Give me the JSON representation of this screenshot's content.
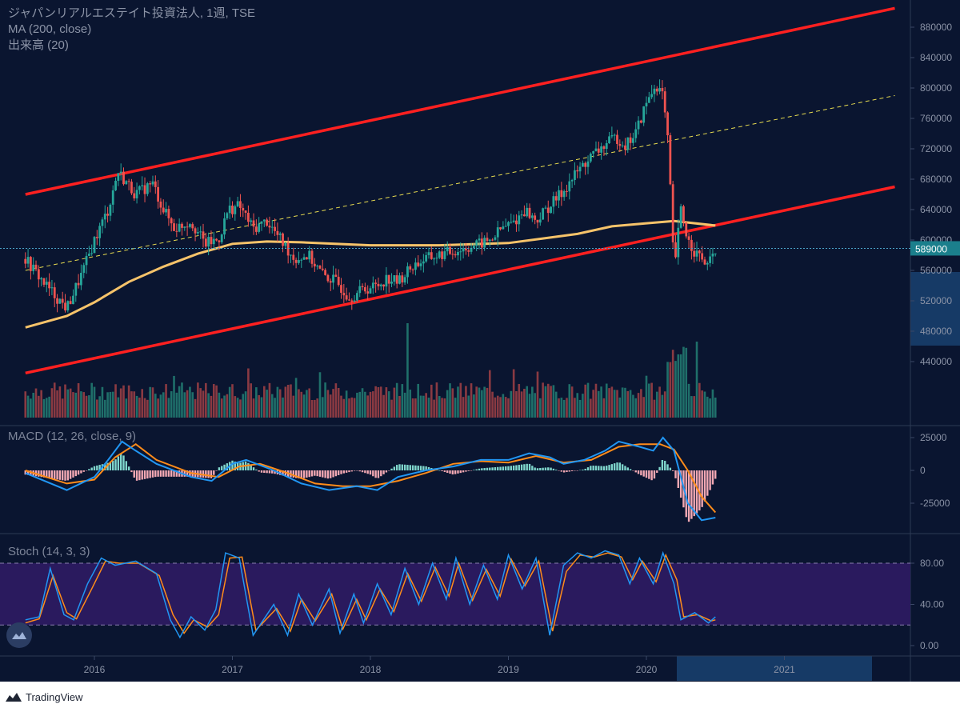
{
  "header": {
    "title": "ジャパンリアルエステイト投資法人, 1週, TSE",
    "ma_label": "MA (200, close)",
    "volume_label": "出来高 (20)"
  },
  "price_tag": "589000",
  "brand": {
    "name": "TradingView"
  },
  "colors": {
    "background": "#0a1530",
    "up": "#26a69a",
    "down": "#ef5350",
    "channel": "#ff2020",
    "ma": "#f6c36a",
    "midline": "#e8dc50",
    "macd": "#2196f3",
    "signal": "#ff8c1a",
    "stoch_band": "#2a1a5e"
  },
  "chart_data": [
    {
      "type": "candlestick",
      "title": "ジャパンリアルエステイト投資法人, 1週, TSE",
      "x_ticks": [
        "2016",
        "2017",
        "2018",
        "2019",
        "2020",
        "2021"
      ],
      "y_ticks": [
        "440000",
        "480000",
        "520000",
        "560000",
        "600000",
        "640000",
        "680000",
        "720000",
        "760000",
        "800000",
        "840000",
        "880000"
      ],
      "ylim": [
        415000,
        905000
      ],
      "last_price": 589000,
      "price_path": [
        [
          2015.5,
          575000
        ],
        [
          2015.65,
          540000
        ],
        [
          2015.8,
          510000
        ],
        [
          2015.92,
          560000
        ],
        [
          2016.0,
          600000
        ],
        [
          2016.1,
          640000
        ],
        [
          2016.17,
          690000
        ],
        [
          2016.3,
          660000
        ],
        [
          2016.42,
          675000
        ],
        [
          2016.5,
          640000
        ],
        [
          2016.58,
          615000
        ],
        [
          2016.7,
          625000
        ],
        [
          2016.8,
          595000
        ],
        [
          2016.9,
          600000
        ],
        [
          2016.97,
          640000
        ],
        [
          2017.05,
          645000
        ],
        [
          2017.15,
          615000
        ],
        [
          2017.25,
          625000
        ],
        [
          2017.35,
          600000
        ],
        [
          2017.45,
          575000
        ],
        [
          2017.55,
          580000
        ],
        [
          2017.65,
          555000
        ],
        [
          2017.75,
          545000
        ],
        [
          2017.85,
          525000
        ],
        [
          2017.95,
          535000
        ],
        [
          2018.05,
          540000
        ],
        [
          2018.12,
          550000
        ],
        [
          2018.2,
          545000
        ],
        [
          2018.3,
          565000
        ],
        [
          2018.4,
          575000
        ],
        [
          2018.5,
          580000
        ],
        [
          2018.6,
          585000
        ],
        [
          2018.7,
          590000
        ],
        [
          2018.8,
          595000
        ],
        [
          2018.87,
          600000
        ],
        [
          2018.95,
          615000
        ],
        [
          2019.05,
          625000
        ],
        [
          2019.12,
          640000
        ],
        [
          2019.2,
          625000
        ],
        [
          2019.3,
          645000
        ],
        [
          2019.4,
          665000
        ],
        [
          2019.5,
          690000
        ],
        [
          2019.6,
          710000
        ],
        [
          2019.7,
          725000
        ],
        [
          2019.78,
          735000
        ],
        [
          2019.85,
          725000
        ],
        [
          2019.92,
          740000
        ],
        [
          2020.0,
          780000
        ],
        [
          2020.07,
          805000
        ],
        [
          2020.12,
          790000
        ],
        [
          2020.16,
          720000
        ],
        [
          2020.2,
          560000
        ],
        [
          2020.25,
          640000
        ],
        [
          2020.3,
          600000
        ],
        [
          2020.35,
          585000
        ],
        [
          2020.4,
          575000
        ],
        [
          2020.45,
          565000
        ],
        [
          2020.5,
          589000
        ]
      ],
      "ma200_path": [
        [
          2015.5,
          485000
        ],
        [
          2015.8,
          500000
        ],
        [
          2016.0,
          518000
        ],
        [
          2016.25,
          545000
        ],
        [
          2016.5,
          565000
        ],
        [
          2016.75,
          582000
        ],
        [
          2017.0,
          595000
        ],
        [
          2017.25,
          598000
        ],
        [
          2017.5,
          597000
        ],
        [
          2018.0,
          593000
        ],
        [
          2018.5,
          593000
        ],
        [
          2019.0,
          596000
        ],
        [
          2019.25,
          602000
        ],
        [
          2019.5,
          608000
        ],
        [
          2019.75,
          618000
        ],
        [
          2020.0,
          622000
        ],
        [
          2020.2,
          625000
        ],
        [
          2020.5,
          619000
        ]
      ],
      "channel_upper": [
        [
          2015.5,
          660000
        ],
        [
          2021.8,
          905000
        ]
      ],
      "channel_lower": [
        [
          2015.5,
          425000
        ],
        [
          2021.8,
          670000
        ]
      ],
      "channel_mid": [
        [
          2015.5,
          560000
        ],
        [
          2021.8,
          790000
        ]
      ]
    },
    {
      "type": "line",
      "title": "MACD (12, 26, close, 9)",
      "y_ticks": [
        "25000",
        "0",
        "-25000"
      ],
      "ylim": [
        -45000,
        32000
      ],
      "macd_path": [
        [
          2015.5,
          -2000
        ],
        [
          2015.8,
          -15000
        ],
        [
          2016.0,
          -5000
        ],
        [
          2016.1,
          8000
        ],
        [
          2016.2,
          22000
        ],
        [
          2016.3,
          15000
        ],
        [
          2016.45,
          5000
        ],
        [
          2016.7,
          -5000
        ],
        [
          2016.85,
          -8000
        ],
        [
          2017.0,
          5000
        ],
        [
          2017.1,
          8000
        ],
        [
          2017.3,
          0
        ],
        [
          2017.5,
          -10000
        ],
        [
          2017.7,
          -15000
        ],
        [
          2017.9,
          -12000
        ],
        [
          2018.05,
          -15000
        ],
        [
          2018.2,
          -5000
        ],
        [
          2018.4,
          0
        ],
        [
          2018.6,
          3000
        ],
        [
          2018.8,
          8000
        ],
        [
          2019.0,
          8000
        ],
        [
          2019.15,
          13000
        ],
        [
          2019.3,
          10000
        ],
        [
          2019.4,
          5000
        ],
        [
          2019.55,
          8000
        ],
        [
          2019.7,
          15000
        ],
        [
          2019.8,
          22000
        ],
        [
          2019.95,
          18000
        ],
        [
          2020.05,
          15000
        ],
        [
          2020.12,
          25000
        ],
        [
          2020.2,
          15000
        ],
        [
          2020.25,
          -5000
        ],
        [
          2020.3,
          -25000
        ],
        [
          2020.4,
          -38000
        ],
        [
          2020.5,
          -36000
        ]
      ],
      "signal_path": [
        [
          2015.5,
          0
        ],
        [
          2015.8,
          -10000
        ],
        [
          2016.0,
          -7000
        ],
        [
          2016.15,
          10000
        ],
        [
          2016.3,
          20000
        ],
        [
          2016.45,
          8000
        ],
        [
          2016.7,
          -2000
        ],
        [
          2016.9,
          -5000
        ],
        [
          2017.05,
          3000
        ],
        [
          2017.2,
          5000
        ],
        [
          2017.4,
          -2000
        ],
        [
          2017.6,
          -10000
        ],
        [
          2017.8,
          -12000
        ],
        [
          2018.0,
          -12000
        ],
        [
          2018.2,
          -8000
        ],
        [
          2018.4,
          -2000
        ],
        [
          2018.6,
          5000
        ],
        [
          2018.8,
          7000
        ],
        [
          2019.0,
          6000
        ],
        [
          2019.2,
          11000
        ],
        [
          2019.4,
          6000
        ],
        [
          2019.6,
          8000
        ],
        [
          2019.8,
          18000
        ],
        [
          2019.95,
          20000
        ],
        [
          2020.1,
          20000
        ],
        [
          2020.2,
          16000
        ],
        [
          2020.3,
          0
        ],
        [
          2020.4,
          -20000
        ],
        [
          2020.5,
          -32000
        ]
      ]
    },
    {
      "type": "line",
      "title": "Stoch (14, 3, 3)",
      "y_ticks": [
        "80.00",
        "40.00",
        "0.00"
      ],
      "ylim": [
        -7,
        100
      ],
      "bands": [
        20,
        80
      ],
      "k_path": [
        [
          2015.5,
          25
        ],
        [
          2015.6,
          28
        ],
        [
          2015.68,
          75
        ],
        [
          2015.78,
          30
        ],
        [
          2015.85,
          25
        ],
        [
          2015.95,
          60
        ],
        [
          2016.05,
          85
        ],
        [
          2016.15,
          78
        ],
        [
          2016.3,
          82
        ],
        [
          2016.45,
          70
        ],
        [
          2016.55,
          25
        ],
        [
          2016.62,
          8
        ],
        [
          2016.7,
          28
        ],
        [
          2016.8,
          15
        ],
        [
          2016.88,
          35
        ],
        [
          2016.95,
          90
        ],
        [
          2017.05,
          85
        ],
        [
          2017.15,
          10
        ],
        [
          2017.3,
          40
        ],
        [
          2017.4,
          10
        ],
        [
          2017.48,
          50
        ],
        [
          2017.58,
          20
        ],
        [
          2017.7,
          55
        ],
        [
          2017.78,
          12
        ],
        [
          2017.88,
          50
        ],
        [
          2017.95,
          22
        ],
        [
          2018.05,
          60
        ],
        [
          2018.15,
          30
        ],
        [
          2018.25,
          75
        ],
        [
          2018.35,
          40
        ],
        [
          2018.45,
          80
        ],
        [
          2018.55,
          45
        ],
        [
          2018.62,
          85
        ],
        [
          2018.72,
          40
        ],
        [
          2018.82,
          78
        ],
        [
          2018.92,
          45
        ],
        [
          2019.0,
          88
        ],
        [
          2019.1,
          55
        ],
        [
          2019.2,
          85
        ],
        [
          2019.3,
          10
        ],
        [
          2019.4,
          78
        ],
        [
          2019.5,
          90
        ],
        [
          2019.6,
          85
        ],
        [
          2019.7,
          92
        ],
        [
          2019.8,
          88
        ],
        [
          2019.88,
          60
        ],
        [
          2019.95,
          85
        ],
        [
          2020.05,
          60
        ],
        [
          2020.12,
          90
        ],
        [
          2020.2,
          60
        ],
        [
          2020.25,
          25
        ],
        [
          2020.35,
          32
        ],
        [
          2020.45,
          22
        ],
        [
          2020.5,
          28
        ]
      ],
      "d_path": [
        [
          2015.5,
          22
        ],
        [
          2015.6,
          26
        ],
        [
          2015.7,
          68
        ],
        [
          2015.8,
          32
        ],
        [
          2015.87,
          26
        ],
        [
          2015.98,
          55
        ],
        [
          2016.08,
          82
        ],
        [
          2016.18,
          80
        ],
        [
          2016.32,
          80
        ],
        [
          2016.47,
          68
        ],
        [
          2016.57,
          30
        ],
        [
          2016.65,
          12
        ],
        [
          2016.72,
          25
        ],
        [
          2016.82,
          18
        ],
        [
          2016.9,
          30
        ],
        [
          2016.98,
          85
        ],
        [
          2017.07,
          86
        ],
        [
          2017.17,
          15
        ],
        [
          2017.32,
          36
        ],
        [
          2017.42,
          14
        ],
        [
          2017.5,
          45
        ],
        [
          2017.6,
          24
        ],
        [
          2017.72,
          50
        ],
        [
          2017.8,
          16
        ],
        [
          2017.9,
          45
        ],
        [
          2017.97,
          25
        ],
        [
          2018.07,
          55
        ],
        [
          2018.17,
          33
        ],
        [
          2018.27,
          70
        ],
        [
          2018.37,
          43
        ],
        [
          2018.47,
          76
        ],
        [
          2018.57,
          48
        ],
        [
          2018.64,
          80
        ],
        [
          2018.74,
          44
        ],
        [
          2018.84,
          74
        ],
        [
          2018.94,
          48
        ],
        [
          2019.02,
          84
        ],
        [
          2019.12,
          58
        ],
        [
          2019.22,
          82
        ],
        [
          2019.32,
          14
        ],
        [
          2019.42,
          72
        ],
        [
          2019.52,
          88
        ],
        [
          2019.62,
          86
        ],
        [
          2019.72,
          90
        ],
        [
          2019.82,
          86
        ],
        [
          2019.9,
          64
        ],
        [
          2019.97,
          82
        ],
        [
          2020.07,
          62
        ],
        [
          2020.14,
          88
        ],
        [
          2020.22,
          64
        ],
        [
          2020.27,
          28
        ],
        [
          2020.37,
          30
        ],
        [
          2020.47,
          24
        ],
        [
          2020.5,
          25
        ]
      ]
    }
  ]
}
